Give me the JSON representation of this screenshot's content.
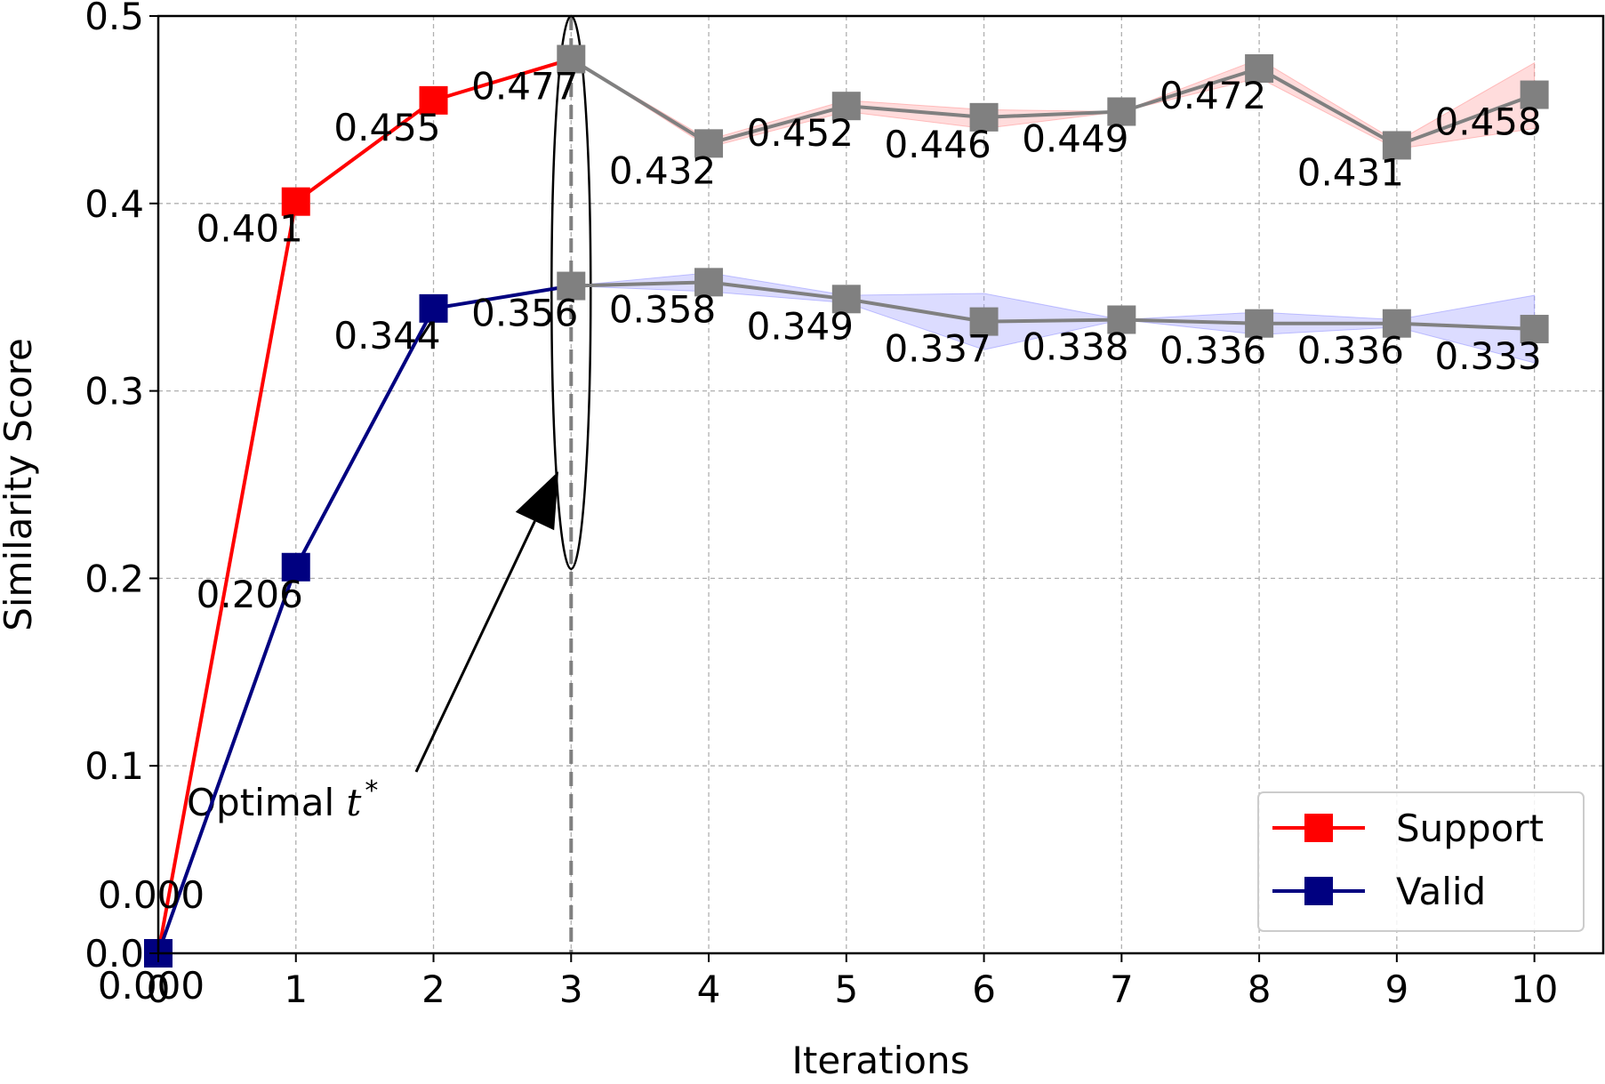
{
  "chart_data": {
    "type": "line",
    "xlabel": "Iterations",
    "ylabel": "Similarity Score",
    "xlim": [
      0,
      10.5
    ],
    "ylim": [
      0,
      0.5
    ],
    "x_ticks": [
      "0",
      "1",
      "2",
      "3",
      "4",
      "5",
      "6",
      "7",
      "8",
      "9",
      "10"
    ],
    "y_ticks": [
      "0.0",
      "0.1",
      "0.2",
      "0.3",
      "0.4",
      "0.5"
    ],
    "grid": true,
    "legend_position": "bottom-right",
    "x": [
      0,
      1,
      2,
      3,
      4,
      5,
      6,
      7,
      8,
      9,
      10
    ],
    "highlight_from_x": 3,
    "highlight_color": "#808080",
    "series": [
      {
        "name": "Support",
        "color": "#ff0000",
        "band_color": "#ff9a9a",
        "values": [
          0.0,
          0.401,
          0.455,
          0.477,
          0.432,
          0.452,
          0.446,
          0.449,
          0.472,
          0.431,
          0.458
        ],
        "labels": [
          "0.000",
          "0.401",
          "0.455",
          "0.477",
          "0.432",
          "0.452",
          "0.446",
          "0.449",
          "0.472",
          "0.431",
          "0.458"
        ],
        "band_upper": [
          null,
          null,
          null,
          0.477,
          0.434,
          0.455,
          0.45,
          0.449,
          0.477,
          0.433,
          0.475
        ],
        "band_lower": [
          null,
          null,
          null,
          0.477,
          0.43,
          0.449,
          0.44,
          0.449,
          0.467,
          0.429,
          0.44
        ]
      },
      {
        "name": "Valid",
        "color": "#000080",
        "band_color": "#9a9aff",
        "values": [
          0.0,
          0.206,
          0.344,
          0.356,
          0.358,
          0.349,
          0.337,
          0.338,
          0.336,
          0.336,
          0.333
        ],
        "labels": [
          "0.000",
          "0.206",
          "0.344",
          "0.356",
          "0.358",
          "0.349",
          "0.337",
          "0.338",
          "0.336",
          "0.336",
          "0.333"
        ],
        "band_upper": [
          null,
          null,
          null,
          0.356,
          0.363,
          0.351,
          0.352,
          0.338,
          0.342,
          0.338,
          0.351
        ],
        "band_lower": [
          null,
          null,
          null,
          0.356,
          0.353,
          0.347,
          0.322,
          0.338,
          0.33,
          0.334,
          0.315
        ]
      }
    ],
    "annotation": {
      "text": "Optimal ",
      "symbol": "t",
      "superscript": "*",
      "x": 3,
      "vline_color": "#808080",
      "ellipse_y_range": [
        0.205,
        0.5
      ]
    }
  }
}
